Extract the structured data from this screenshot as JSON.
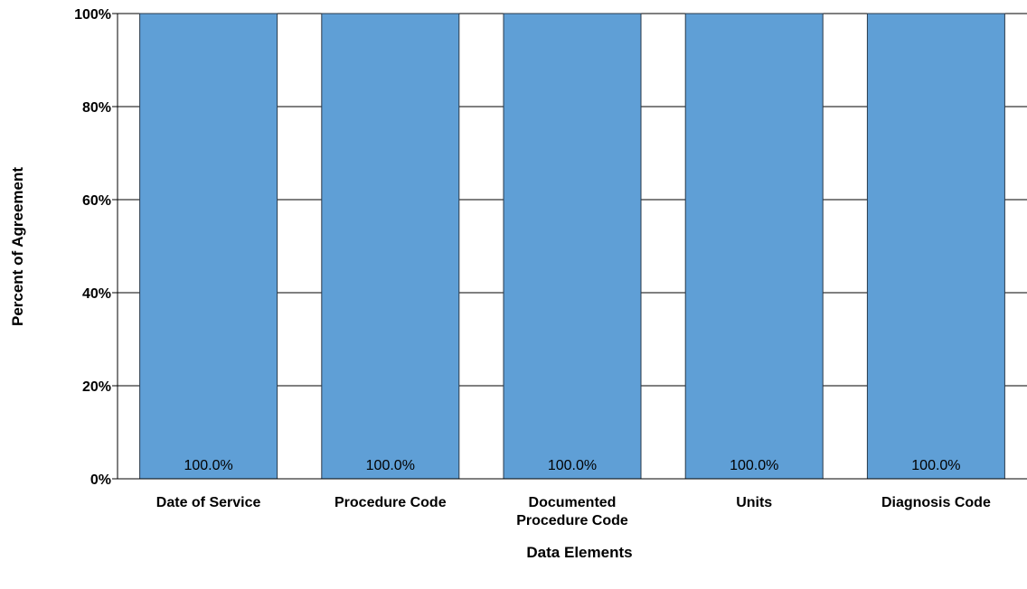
{
  "chart_data": {
    "type": "bar",
    "title": "",
    "xlabel": "Data Elements",
    "ylabel": "Percent of Agreement",
    "categories": [
      [
        "Date of Service"
      ],
      [
        "Procedure Code"
      ],
      [
        "Documented",
        "Procedure Code"
      ],
      [
        "Units"
      ],
      [
        "Diagnosis Code"
      ]
    ],
    "values": [
      100.0,
      100.0,
      100.0,
      100.0,
      100.0
    ],
    "value_labels": [
      "100.0%",
      "100.0%",
      "100.0%",
      "100.0%",
      "100.0%"
    ],
    "ylim": [
      0,
      100
    ],
    "yticks": [
      0,
      20,
      40,
      60,
      80,
      100
    ],
    "ytick_labels": [
      "0%",
      "20%",
      "40%",
      "60%",
      "80%",
      "100%"
    ],
    "grid": true,
    "legend": "none",
    "colors": {
      "bar_fill": "#5f9fd6",
      "bar_stroke": "#2a3a4a",
      "grid": "#000000",
      "axis": "#000000"
    }
  }
}
